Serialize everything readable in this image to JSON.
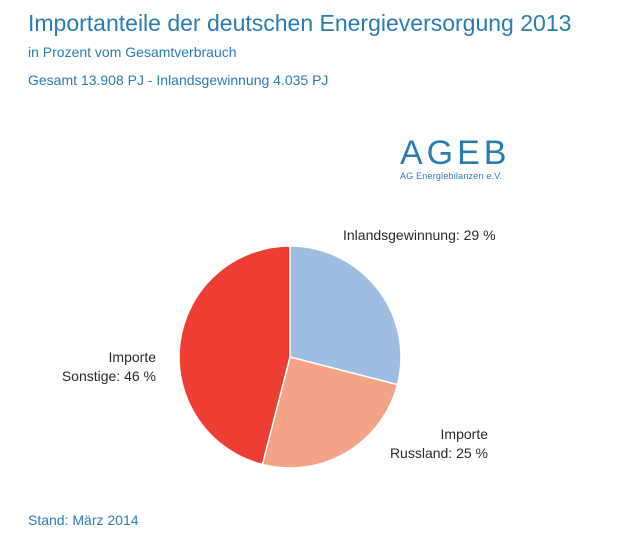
{
  "header": {
    "title": "Importanteile der deutschen Energieversorgung 2013",
    "subtitle": "in Prozent vom Gesamtverbrauch",
    "totals": "Gesamt 13.908 PJ - Inlandsgewinnung 4.035 PJ"
  },
  "logo": {
    "main": "AGEB",
    "sub": "AG Energiebilanzen e.V."
  },
  "chart_data": {
    "type": "pie",
    "title": "Importanteile der deutschen Energieversorgung 2013",
    "slices": [
      {
        "line1": "Inlandsgewinnung: 29 %",
        "line2": "",
        "value": 29,
        "color": "#9fbde3"
      },
      {
        "line1": "Importe",
        "line2": "Russland: 25 %",
        "value": 25,
        "color": "#f5a387"
      },
      {
        "line1": "Importe",
        "line2": "Sonstige: 46 %",
        "value": 46,
        "color": "#ee3e33"
      }
    ]
  },
  "footer": "Stand: März 2014"
}
